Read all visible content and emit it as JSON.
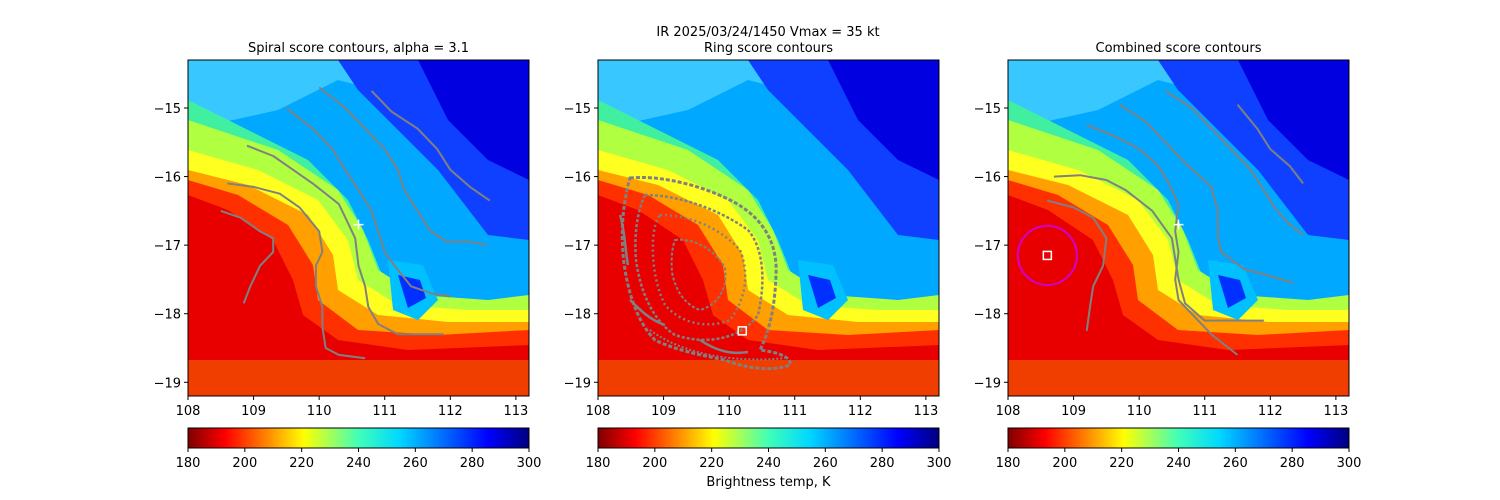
{
  "figure": {
    "suptitle_line1": "IR  2025/03/24/1450    Vmax = 35 kt",
    "colorbar_label": "Brightness temp, K"
  },
  "chart_data": [
    {
      "type": "heatmap",
      "title": "Spiral score contours, alpha =  3.1",
      "xlim": [
        108.0,
        113.2
      ],
      "ylim": [
        -19.2,
        -14.3
      ],
      "xticks": [
        "108",
        "109",
        "110",
        "111",
        "112",
        "113"
      ],
      "yticks": [
        "−15",
        "−16",
        "−17",
        "−18",
        "−19"
      ],
      "ytick_values": [
        -15,
        -16,
        -17,
        -18,
        -19
      ],
      "xtick_values": [
        108,
        109,
        110,
        111,
        112,
        113
      ],
      "colormap": "jet_r",
      "clim": [
        180,
        300
      ],
      "colorbar_ticks": [
        "180",
        "200",
        "220",
        "240",
        "260",
        "280",
        "300"
      ],
      "marker_plus": [
        110.6,
        -16.7
      ],
      "contours": [
        [
          [
            108.5,
            -16.5
          ],
          [
            108.8,
            -16.6
          ],
          [
            109.1,
            -16.8
          ],
          [
            109.3,
            -16.9
          ],
          [
            109.3,
            -17.1
          ],
          [
            109.1,
            -17.3
          ],
          [
            108.95,
            -17.6
          ],
          [
            108.85,
            -17.85
          ]
        ],
        [
          [
            108.6,
            -16.1
          ],
          [
            109.0,
            -16.15
          ],
          [
            109.4,
            -16.25
          ],
          [
            109.7,
            -16.45
          ],
          [
            110.0,
            -16.8
          ],
          [
            110.05,
            -17.1
          ],
          [
            109.95,
            -17.3
          ],
          [
            109.95,
            -17.6
          ],
          [
            110.05,
            -17.9
          ],
          [
            110.05,
            -18.2
          ],
          [
            110.1,
            -18.5
          ],
          [
            110.3,
            -18.6
          ],
          [
            110.7,
            -18.65
          ]
        ],
        [
          [
            108.9,
            -15.55
          ],
          [
            109.3,
            -15.7
          ],
          [
            109.6,
            -15.9
          ],
          [
            109.9,
            -16.1
          ],
          [
            110.3,
            -16.4
          ],
          [
            110.4,
            -16.6
          ],
          [
            110.55,
            -16.9
          ],
          [
            110.6,
            -17.3
          ],
          [
            110.7,
            -17.6
          ],
          [
            110.75,
            -17.9
          ],
          [
            110.9,
            -18.15
          ],
          [
            111.2,
            -18.3
          ],
          [
            111.6,
            -18.3
          ],
          [
            111.9,
            -18.3
          ]
        ],
        [
          [
            109.5,
            -15.0
          ],
          [
            109.9,
            -15.3
          ],
          [
            110.2,
            -15.6
          ],
          [
            110.4,
            -15.9
          ],
          [
            110.6,
            -16.2
          ],
          [
            110.8,
            -16.5
          ],
          [
            110.9,
            -16.8
          ],
          [
            111.0,
            -17.1
          ],
          [
            111.15,
            -17.3
          ],
          [
            111.4,
            -17.6
          ],
          [
            111.7,
            -17.7
          ],
          [
            112.0,
            -17.75
          ]
        ],
        [
          [
            110.0,
            -14.7
          ],
          [
            110.4,
            -15.0
          ],
          [
            110.7,
            -15.3
          ],
          [
            111.0,
            -15.6
          ],
          [
            111.2,
            -15.9
          ],
          [
            111.3,
            -16.2
          ],
          [
            111.5,
            -16.5
          ],
          [
            111.7,
            -16.8
          ],
          [
            111.95,
            -16.95
          ],
          [
            112.3,
            -16.95
          ],
          [
            112.55,
            -17.0
          ]
        ],
        [
          [
            110.8,
            -14.75
          ],
          [
            111.1,
            -15.05
          ],
          [
            111.5,
            -15.3
          ],
          [
            111.8,
            -15.6
          ],
          [
            112.0,
            -15.9
          ],
          [
            112.3,
            -16.15
          ],
          [
            112.6,
            -16.35
          ]
        ]
      ]
    },
    {
      "type": "heatmap",
      "title": "Ring score contours",
      "xlim": [
        108.0,
        113.2
      ],
      "ylim": [
        -19.2,
        -14.3
      ],
      "xticks": [
        "108",
        "109",
        "110",
        "111",
        "112",
        "113"
      ],
      "yticks": [
        "−15",
        "−16",
        "−17",
        "−18",
        "−19"
      ],
      "ytick_values": [
        -15,
        -16,
        -17,
        -18,
        -19
      ],
      "xtick_values": [
        108,
        109,
        110,
        111,
        112,
        113
      ],
      "colormap": "jet_r",
      "clim": [
        180,
        300
      ],
      "colorbar_ticks": [
        "180",
        "200",
        "220",
        "240",
        "260",
        "280",
        "300"
      ],
      "marker_square": [
        110.2,
        -18.25
      ]
    },
    {
      "type": "heatmap",
      "title": "Combined score contours",
      "xlim": [
        108.0,
        113.2
      ],
      "ylim": [
        -19.2,
        -14.3
      ],
      "xticks": [
        "108",
        "109",
        "110",
        "111",
        "112",
        "113"
      ],
      "yticks": [
        "−15",
        "−16",
        "−17",
        "−18",
        "−19"
      ],
      "ytick_values": [
        -15,
        -16,
        -17,
        -18,
        -19
      ],
      "xtick_values": [
        108,
        109,
        110,
        111,
        112,
        113
      ],
      "colormap": "jet_r",
      "clim": [
        180,
        300
      ],
      "colorbar_ticks": [
        "180",
        "200",
        "220",
        "240",
        "260",
        "280",
        "300"
      ],
      "marker_plus": [
        110.6,
        -16.7
      ],
      "marker_square": [
        108.6,
        -17.15
      ],
      "circle": {
        "center": [
          108.6,
          -17.15
        ],
        "radius_deg": 0.45,
        "color": "#d000d0"
      },
      "contours": [
        [
          [
            108.6,
            -16.35
          ],
          [
            109.0,
            -16.45
          ],
          [
            109.3,
            -16.6
          ],
          [
            109.5,
            -16.9
          ],
          [
            109.45,
            -17.3
          ],
          [
            109.3,
            -17.6
          ],
          [
            109.25,
            -17.9
          ],
          [
            109.2,
            -18.25
          ]
        ],
        [
          [
            108.7,
            -16.0
          ],
          [
            109.1,
            -15.98
          ],
          [
            109.5,
            -16.05
          ],
          [
            109.8,
            -16.2
          ],
          [
            110.2,
            -16.5
          ],
          [
            110.5,
            -16.9
          ],
          [
            110.55,
            -17.2
          ],
          [
            110.6,
            -17.5
          ],
          [
            110.7,
            -17.85
          ],
          [
            111.0,
            -18.1
          ],
          [
            111.4,
            -18.1
          ],
          [
            111.9,
            -18.1
          ]
        ],
        [
          [
            109.2,
            -15.25
          ],
          [
            109.6,
            -15.4
          ],
          [
            110.0,
            -15.6
          ],
          [
            110.3,
            -15.85
          ],
          [
            110.45,
            -16.1
          ],
          [
            110.6,
            -16.4
          ],
          [
            110.55,
            -16.8
          ],
          [
            110.6,
            -17.1
          ],
          [
            110.55,
            -17.5
          ],
          [
            110.6,
            -17.8
          ],
          [
            110.8,
            -18.0
          ],
          [
            111.1,
            -18.3
          ],
          [
            111.3,
            -18.45
          ],
          [
            111.5,
            -18.6
          ]
        ],
        [
          [
            109.7,
            -14.95
          ],
          [
            110.1,
            -15.2
          ],
          [
            110.4,
            -15.5
          ],
          [
            110.7,
            -15.8
          ],
          [
            111.1,
            -16.15
          ],
          [
            111.2,
            -16.5
          ],
          [
            111.2,
            -16.85
          ],
          [
            111.25,
            -17.1
          ],
          [
            111.6,
            -17.35
          ],
          [
            112.0,
            -17.45
          ],
          [
            112.35,
            -17.55
          ]
        ],
        [
          [
            110.4,
            -14.75
          ],
          [
            110.8,
            -15.0
          ],
          [
            111.1,
            -15.3
          ],
          [
            111.4,
            -15.6
          ],
          [
            111.7,
            -15.9
          ],
          [
            111.9,
            -16.2
          ],
          [
            112.1,
            -16.5
          ],
          [
            112.3,
            -16.7
          ],
          [
            112.5,
            -16.85
          ]
        ],
        [
          [
            111.5,
            -14.95
          ],
          [
            111.8,
            -15.3
          ],
          [
            112.0,
            -15.6
          ],
          [
            112.3,
            -15.85
          ],
          [
            112.5,
            -16.1
          ]
        ]
      ]
    }
  ]
}
